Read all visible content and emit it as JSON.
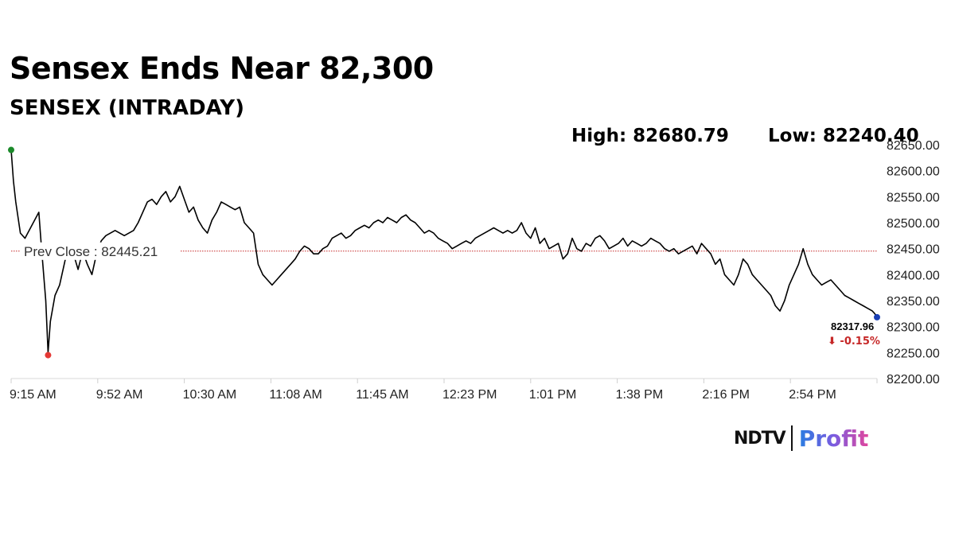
{
  "header": {
    "title": "Sensex Ends Near 82,300",
    "subtitle": "SENSEX (INTRADAY)"
  },
  "stats": {
    "high_label": "High: 82680.79",
    "low_label": "Low: 82240.40"
  },
  "logo": {
    "brand": "NDTV",
    "product": "Profit",
    "colors": {
      "gradient_start": "#2a7de1",
      "gradient_mid": "#7a5ce0",
      "gradient_end": "#e0479e",
      "dot": "#e53935"
    }
  },
  "chart_data": {
    "type": "line",
    "title": "SENSEX (INTRADAY)",
    "ylim": [
      82200,
      82650
    ],
    "y_ticks": [
      "82200.00",
      "82250.00",
      "82300.00",
      "82350.00",
      "82400.00",
      "82450.00",
      "82500.00",
      "82550.00",
      "82600.00",
      "82650.00"
    ],
    "x_ticks": [
      "9:15 AM",
      "9:52 AM",
      "10:30 AM",
      "11:08 AM",
      "11:45 AM",
      "12:23 PM",
      "1:01 PM",
      "1:38 PM",
      "2:16 PM",
      "2:54 PM"
    ],
    "x_range_minutes": [
      555,
      930
    ],
    "grid": false,
    "prev_close": {
      "label": "Prev Close : 82445.21",
      "value": 82445.21,
      "color": "#c62828"
    },
    "last": {
      "value_label": "82317.96",
      "change_label": "⬇ -0.15%",
      "value": 82317.96,
      "change_color": "#c62828"
    },
    "markers": [
      {
        "name": "open",
        "minute": 555,
        "value": 82640,
        "color": "#1b8a2a"
      },
      {
        "name": "day-low",
        "minute": 571,
        "value": 82245,
        "color": "#e53935"
      },
      {
        "name": "last",
        "minute": 930,
        "value": 82318,
        "color": "#1a3fb5"
      }
    ],
    "series": [
      {
        "color": "#000000",
        "points": [
          [
            555,
            82640
          ],
          [
            556,
            82580
          ],
          [
            557,
            82540
          ],
          [
            559,
            82480
          ],
          [
            561,
            82470
          ],
          [
            564,
            82495
          ],
          [
            567,
            82520
          ],
          [
            568,
            82460
          ],
          [
            570,
            82350
          ],
          [
            571,
            82250
          ],
          [
            572,
            82310
          ],
          [
            574,
            82360
          ],
          [
            576,
            82380
          ],
          [
            578,
            82420
          ],
          [
            580,
            82460
          ],
          [
            582,
            82440
          ],
          [
            584,
            82410
          ],
          [
            586,
            82445
          ],
          [
            588,
            82420
          ],
          [
            590,
            82400
          ],
          [
            592,
            82440
          ],
          [
            594,
            82465
          ],
          [
            596,
            82475
          ],
          [
            598,
            82480
          ],
          [
            600,
            82485
          ],
          [
            602,
            82480
          ],
          [
            604,
            82475
          ],
          [
            606,
            82480
          ],
          [
            608,
            82485
          ],
          [
            610,
            82500
          ],
          [
            612,
            82520
          ],
          [
            614,
            82540
          ],
          [
            616,
            82545
          ],
          [
            618,
            82535
          ],
          [
            620,
            82550
          ],
          [
            622,
            82560
          ],
          [
            624,
            82540
          ],
          [
            626,
            82550
          ],
          [
            628,
            82570
          ],
          [
            630,
            82545
          ],
          [
            632,
            82520
          ],
          [
            634,
            82530
          ],
          [
            636,
            82505
          ],
          [
            638,
            82490
          ],
          [
            640,
            82480
          ],
          [
            642,
            82505
          ],
          [
            644,
            82520
          ],
          [
            646,
            82540
          ],
          [
            648,
            82535
          ],
          [
            650,
            82530
          ],
          [
            652,
            82525
          ],
          [
            654,
            82530
          ],
          [
            656,
            82500
          ],
          [
            658,
            82490
          ],
          [
            660,
            82480
          ],
          [
            662,
            82420
          ],
          [
            664,
            82400
          ],
          [
            666,
            82390
          ],
          [
            668,
            82380
          ],
          [
            670,
            82390
          ],
          [
            672,
            82400
          ],
          [
            674,
            82410
          ],
          [
            676,
            82420
          ],
          [
            678,
            82430
          ],
          [
            680,
            82445
          ],
          [
            682,
            82455
          ],
          [
            684,
            82450
          ],
          [
            686,
            82440
          ],
          [
            688,
            82440
          ],
          [
            690,
            82450
          ],
          [
            692,
            82455
          ],
          [
            694,
            82470
          ],
          [
            696,
            82475
          ],
          [
            698,
            82480
          ],
          [
            700,
            82470
          ],
          [
            702,
            82475
          ],
          [
            704,
            82485
          ],
          [
            706,
            82490
          ],
          [
            708,
            82495
          ],
          [
            710,
            82490
          ],
          [
            712,
            82500
          ],
          [
            714,
            82505
          ],
          [
            716,
            82500
          ],
          [
            718,
            82510
          ],
          [
            720,
            82505
          ],
          [
            722,
            82500
          ],
          [
            724,
            82510
          ],
          [
            726,
            82515
          ],
          [
            728,
            82505
          ],
          [
            730,
            82500
          ],
          [
            732,
            82490
          ],
          [
            734,
            82480
          ],
          [
            736,
            82485
          ],
          [
            738,
            82480
          ],
          [
            740,
            82470
          ],
          [
            742,
            82465
          ],
          [
            744,
            82460
          ],
          [
            746,
            82450
          ],
          [
            748,
            82455
          ],
          [
            750,
            82460
          ],
          [
            752,
            82465
          ],
          [
            754,
            82460
          ],
          [
            756,
            82470
          ],
          [
            758,
            82475
          ],
          [
            760,
            82480
          ],
          [
            762,
            82485
          ],
          [
            764,
            82490
          ],
          [
            766,
            82485
          ],
          [
            768,
            82480
          ],
          [
            770,
            82485
          ],
          [
            772,
            82480
          ],
          [
            774,
            82485
          ],
          [
            776,
            82500
          ],
          [
            778,
            82480
          ],
          [
            780,
            82470
          ],
          [
            782,
            82490
          ],
          [
            784,
            82460
          ],
          [
            786,
            82470
          ],
          [
            788,
            82450
          ],
          [
            790,
            82455
          ],
          [
            792,
            82460
          ],
          [
            794,
            82430
          ],
          [
            796,
            82440
          ],
          [
            798,
            82470
          ],
          [
            800,
            82450
          ],
          [
            802,
            82445
          ],
          [
            804,
            82460
          ],
          [
            806,
            82455
          ],
          [
            808,
            82470
          ],
          [
            810,
            82475
          ],
          [
            812,
            82465
          ],
          [
            814,
            82450
          ],
          [
            816,
            82455
          ],
          [
            818,
            82460
          ],
          [
            820,
            82470
          ],
          [
            822,
            82455
          ],
          [
            824,
            82465
          ],
          [
            826,
            82460
          ],
          [
            828,
            82455
          ],
          [
            830,
            82460
          ],
          [
            832,
            82470
          ],
          [
            834,
            82465
          ],
          [
            836,
            82460
          ],
          [
            838,
            82450
          ],
          [
            840,
            82445
          ],
          [
            842,
            82450
          ],
          [
            844,
            82440
          ],
          [
            846,
            82445
          ],
          [
            848,
            82450
          ],
          [
            850,
            82455
          ],
          [
            852,
            82440
          ],
          [
            854,
            82460
          ],
          [
            856,
            82450
          ],
          [
            858,
            82440
          ],
          [
            860,
            82420
          ],
          [
            862,
            82430
          ],
          [
            864,
            82400
          ],
          [
            866,
            82390
          ],
          [
            868,
            82380
          ],
          [
            870,
            82400
          ],
          [
            872,
            82430
          ],
          [
            874,
            82420
          ],
          [
            876,
            82400
          ],
          [
            878,
            82390
          ],
          [
            880,
            82380
          ],
          [
            882,
            82370
          ],
          [
            884,
            82360
          ],
          [
            886,
            82340
          ],
          [
            888,
            82330
          ],
          [
            890,
            82350
          ],
          [
            892,
            82380
          ],
          [
            894,
            82400
          ],
          [
            896,
            82420
          ],
          [
            898,
            82450
          ],
          [
            900,
            82420
          ],
          [
            902,
            82400
          ],
          [
            904,
            82390
          ],
          [
            906,
            82380
          ],
          [
            908,
            82385
          ],
          [
            910,
            82390
          ],
          [
            912,
            82380
          ],
          [
            914,
            82370
          ],
          [
            916,
            82360
          ],
          [
            918,
            82355
          ],
          [
            920,
            82350
          ],
          [
            922,
            82345
          ],
          [
            924,
            82340
          ],
          [
            926,
            82335
          ],
          [
            928,
            82330
          ],
          [
            929,
            82325
          ],
          [
            930,
            82318
          ]
        ]
      }
    ]
  }
}
